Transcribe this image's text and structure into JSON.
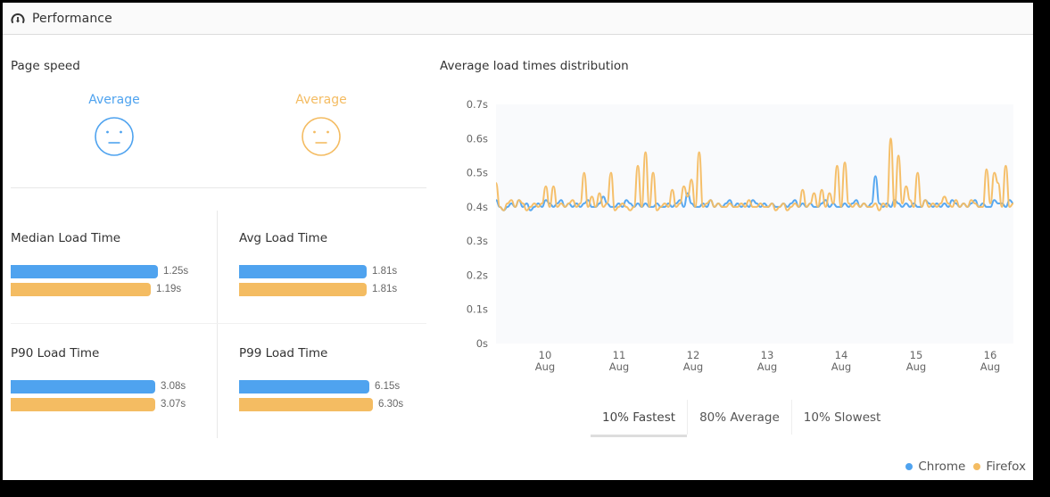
{
  "header": {
    "title": "Performance",
    "icon": "gauge-icon"
  },
  "page_speed": {
    "title": "Page speed",
    "chrome": {
      "label": "Average",
      "icon": "neutral-face-icon",
      "color": "#4fa3ef"
    },
    "firefox": {
      "label": "Average",
      "icon": "neutral-face-icon",
      "color": "#f4bc62"
    }
  },
  "metrics": [
    {
      "title": "Median Load Time",
      "chrome": {
        "value": "1.25s",
        "width": 165
      },
      "firefox": {
        "value": "1.19s",
        "width": 157
      }
    },
    {
      "title": "Avg Load Time",
      "chrome": {
        "value": "1.81s",
        "width": 143
      },
      "firefox": {
        "value": "1.81s",
        "width": 143
      }
    },
    {
      "title": "P90 Load Time",
      "chrome": {
        "value": "3.08s",
        "width": 162
      },
      "firefox": {
        "value": "3.07s",
        "width": 162
      }
    },
    {
      "title": "P99 Load Time",
      "chrome": {
        "value": "6.15s",
        "width": 146
      },
      "firefox": {
        "value": "6.30s",
        "width": 150
      }
    }
  ],
  "distribution": {
    "title": "Average load times distribution",
    "tabs": [
      {
        "label": "10% Fastest",
        "active": true
      },
      {
        "label": "80% Average",
        "active": false
      },
      {
        "label": "10% Slowest",
        "active": false
      }
    ]
  },
  "legend": [
    {
      "label": "Chrome",
      "color": "#4fa3ef"
    },
    {
      "label": "Firefox",
      "color": "#f4bc62"
    }
  ],
  "chart_data": {
    "type": "line",
    "title": "Average load times distribution",
    "xlabel": "",
    "ylabel": "",
    "ylim": [
      0,
      0.7
    ],
    "yticks": [
      "0s",
      "0.1s",
      "0.2s",
      "0.3s",
      "0.4s",
      "0.5s",
      "0.6s",
      "0.7s"
    ],
    "xticks": [
      "10 Aug",
      "11 Aug",
      "12 Aug",
      "13 Aug",
      "14 Aug",
      "15 Aug",
      "16 Aug"
    ],
    "x_range": [
      "9.4 Aug",
      "16.3 Aug"
    ],
    "grid": false,
    "legend_position": "bottom-right",
    "series": [
      {
        "name": "Chrome",
        "color": "#4fa3ef",
        "values": [
          0.42,
          0.4,
          0.39,
          0.4,
          0.41,
          0.4,
          0.42,
          0.4,
          0.41,
          0.39,
          0.4,
          0.41,
          0.4,
          0.42,
          0.41,
          0.4,
          0.41,
          0.42,
          0.4,
          0.41,
          0.4,
          0.41,
          0.4,
          0.41,
          0.42,
          0.4,
          0.4,
          0.41,
          0.43,
          0.41,
          0.4,
          0.4,
          0.41,
          0.4,
          0.42,
          0.41,
          0.4,
          0.41,
          0.4,
          0.41,
          0.4,
          0.4,
          0.41,
          0.4,
          0.4,
          0.41,
          0.4,
          0.41,
          0.42,
          0.4,
          0.44,
          0.41,
          0.4,
          0.4,
          0.41,
          0.4,
          0.42,
          0.4,
          0.41,
          0.4,
          0.41,
          0.42,
          0.4,
          0.41,
          0.4,
          0.41,
          0.4,
          0.42,
          0.41,
          0.4,
          0.41,
          0.4,
          0.41,
          0.4,
          0.4,
          0.41,
          0.4,
          0.41,
          0.42,
          0.4,
          0.41,
          0.4,
          0.41,
          0.4,
          0.4,
          0.41,
          0.42,
          0.4,
          0.41,
          0.4,
          0.4,
          0.41,
          0.4,
          0.41,
          0.42,
          0.4,
          0.41,
          0.4,
          0.41,
          0.49,
          0.41,
          0.4,
          0.41,
          0.4,
          0.42,
          0.41,
          0.4,
          0.41,
          0.4,
          0.41,
          0.4,
          0.4,
          0.42,
          0.41,
          0.4,
          0.41,
          0.4,
          0.41,
          0.4,
          0.42,
          0.41,
          0.4,
          0.41,
          0.4,
          0.41,
          0.42,
          0.4,
          0.41,
          0.4,
          0.4,
          0.42,
          0.41,
          0.41,
          0.4,
          0.42,
          0.41
        ]
      },
      {
        "name": "Firefox",
        "color": "#f4bc62",
        "values": [
          0.47,
          0.4,
          0.39,
          0.41,
          0.42,
          0.4,
          0.42,
          0.41,
          0.39,
          0.4,
          0.41,
          0.4,
          0.41,
          0.46,
          0.4,
          0.46,
          0.4,
          0.41,
          0.4,
          0.41,
          0.42,
          0.4,
          0.41,
          0.5,
          0.4,
          0.43,
          0.4,
          0.44,
          0.4,
          0.41,
          0.5,
          0.39,
          0.4,
          0.41,
          0.4,
          0.39,
          0.4,
          0.52,
          0.4,
          0.56,
          0.4,
          0.5,
          0.39,
          0.4,
          0.41,
          0.4,
          0.45,
          0.4,
          0.41,
          0.46,
          0.43,
          0.48,
          0.4,
          0.56,
          0.4,
          0.41,
          0.42,
          0.4,
          0.41,
          0.4,
          0.4,
          0.41,
          0.4,
          0.4,
          0.41,
          0.4,
          0.42,
          0.4,
          0.4,
          0.41,
          0.4,
          0.4,
          0.41,
          0.39,
          0.4,
          0.41,
          0.39,
          0.4,
          0.41,
          0.4,
          0.45,
          0.4,
          0.41,
          0.44,
          0.4,
          0.45,
          0.4,
          0.44,
          0.41,
          0.52,
          0.4,
          0.53,
          0.41,
          0.4,
          0.41,
          0.4,
          0.41,
          0.4,
          0.4,
          0.41,
          0.39,
          0.41,
          0.4,
          0.6,
          0.4,
          0.55,
          0.41,
          0.46,
          0.42,
          0.4,
          0.5,
          0.4,
          0.42,
          0.4,
          0.41,
          0.4,
          0.41,
          0.43,
          0.41,
          0.4,
          0.42,
          0.4,
          0.41,
          0.4,
          0.42,
          0.41,
          0.4,
          0.4,
          0.51,
          0.41,
          0.5,
          0.47,
          0.4,
          0.52,
          0.4,
          0.41
        ]
      }
    ]
  }
}
